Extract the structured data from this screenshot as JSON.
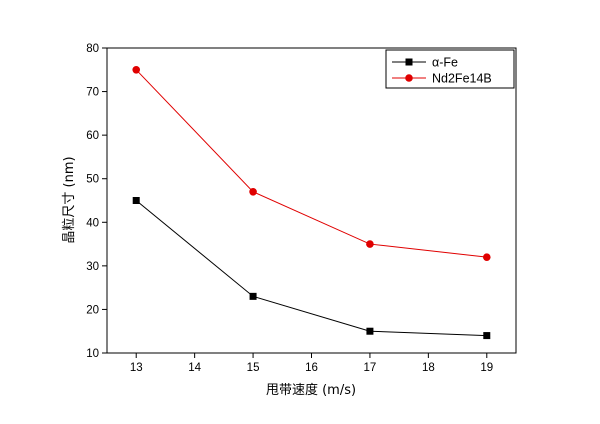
{
  "chart_data": {
    "type": "line",
    "title": "",
    "xlabel": "甩带速度 (m/s)",
    "ylabel": "晶粒尺寸 (nm)",
    "x": [
      13,
      15,
      17,
      19
    ],
    "xlim": [
      12.5,
      19.5
    ],
    "ylim": [
      10,
      80
    ],
    "xticks": [
      13,
      14,
      15,
      16,
      17,
      18,
      19
    ],
    "yticks": [
      10,
      20,
      30,
      40,
      50,
      60,
      70,
      80
    ],
    "grid": false,
    "legend_position": "top-right",
    "series": [
      {
        "name": "α-Fe",
        "values": [
          45,
          23,
          15,
          14
        ],
        "color": "#000000",
        "marker": "square"
      },
      {
        "name": "Nd2Fe14B",
        "values": [
          75,
          47,
          35,
          32
        ],
        "color": "#e00000",
        "marker": "circle"
      }
    ]
  }
}
